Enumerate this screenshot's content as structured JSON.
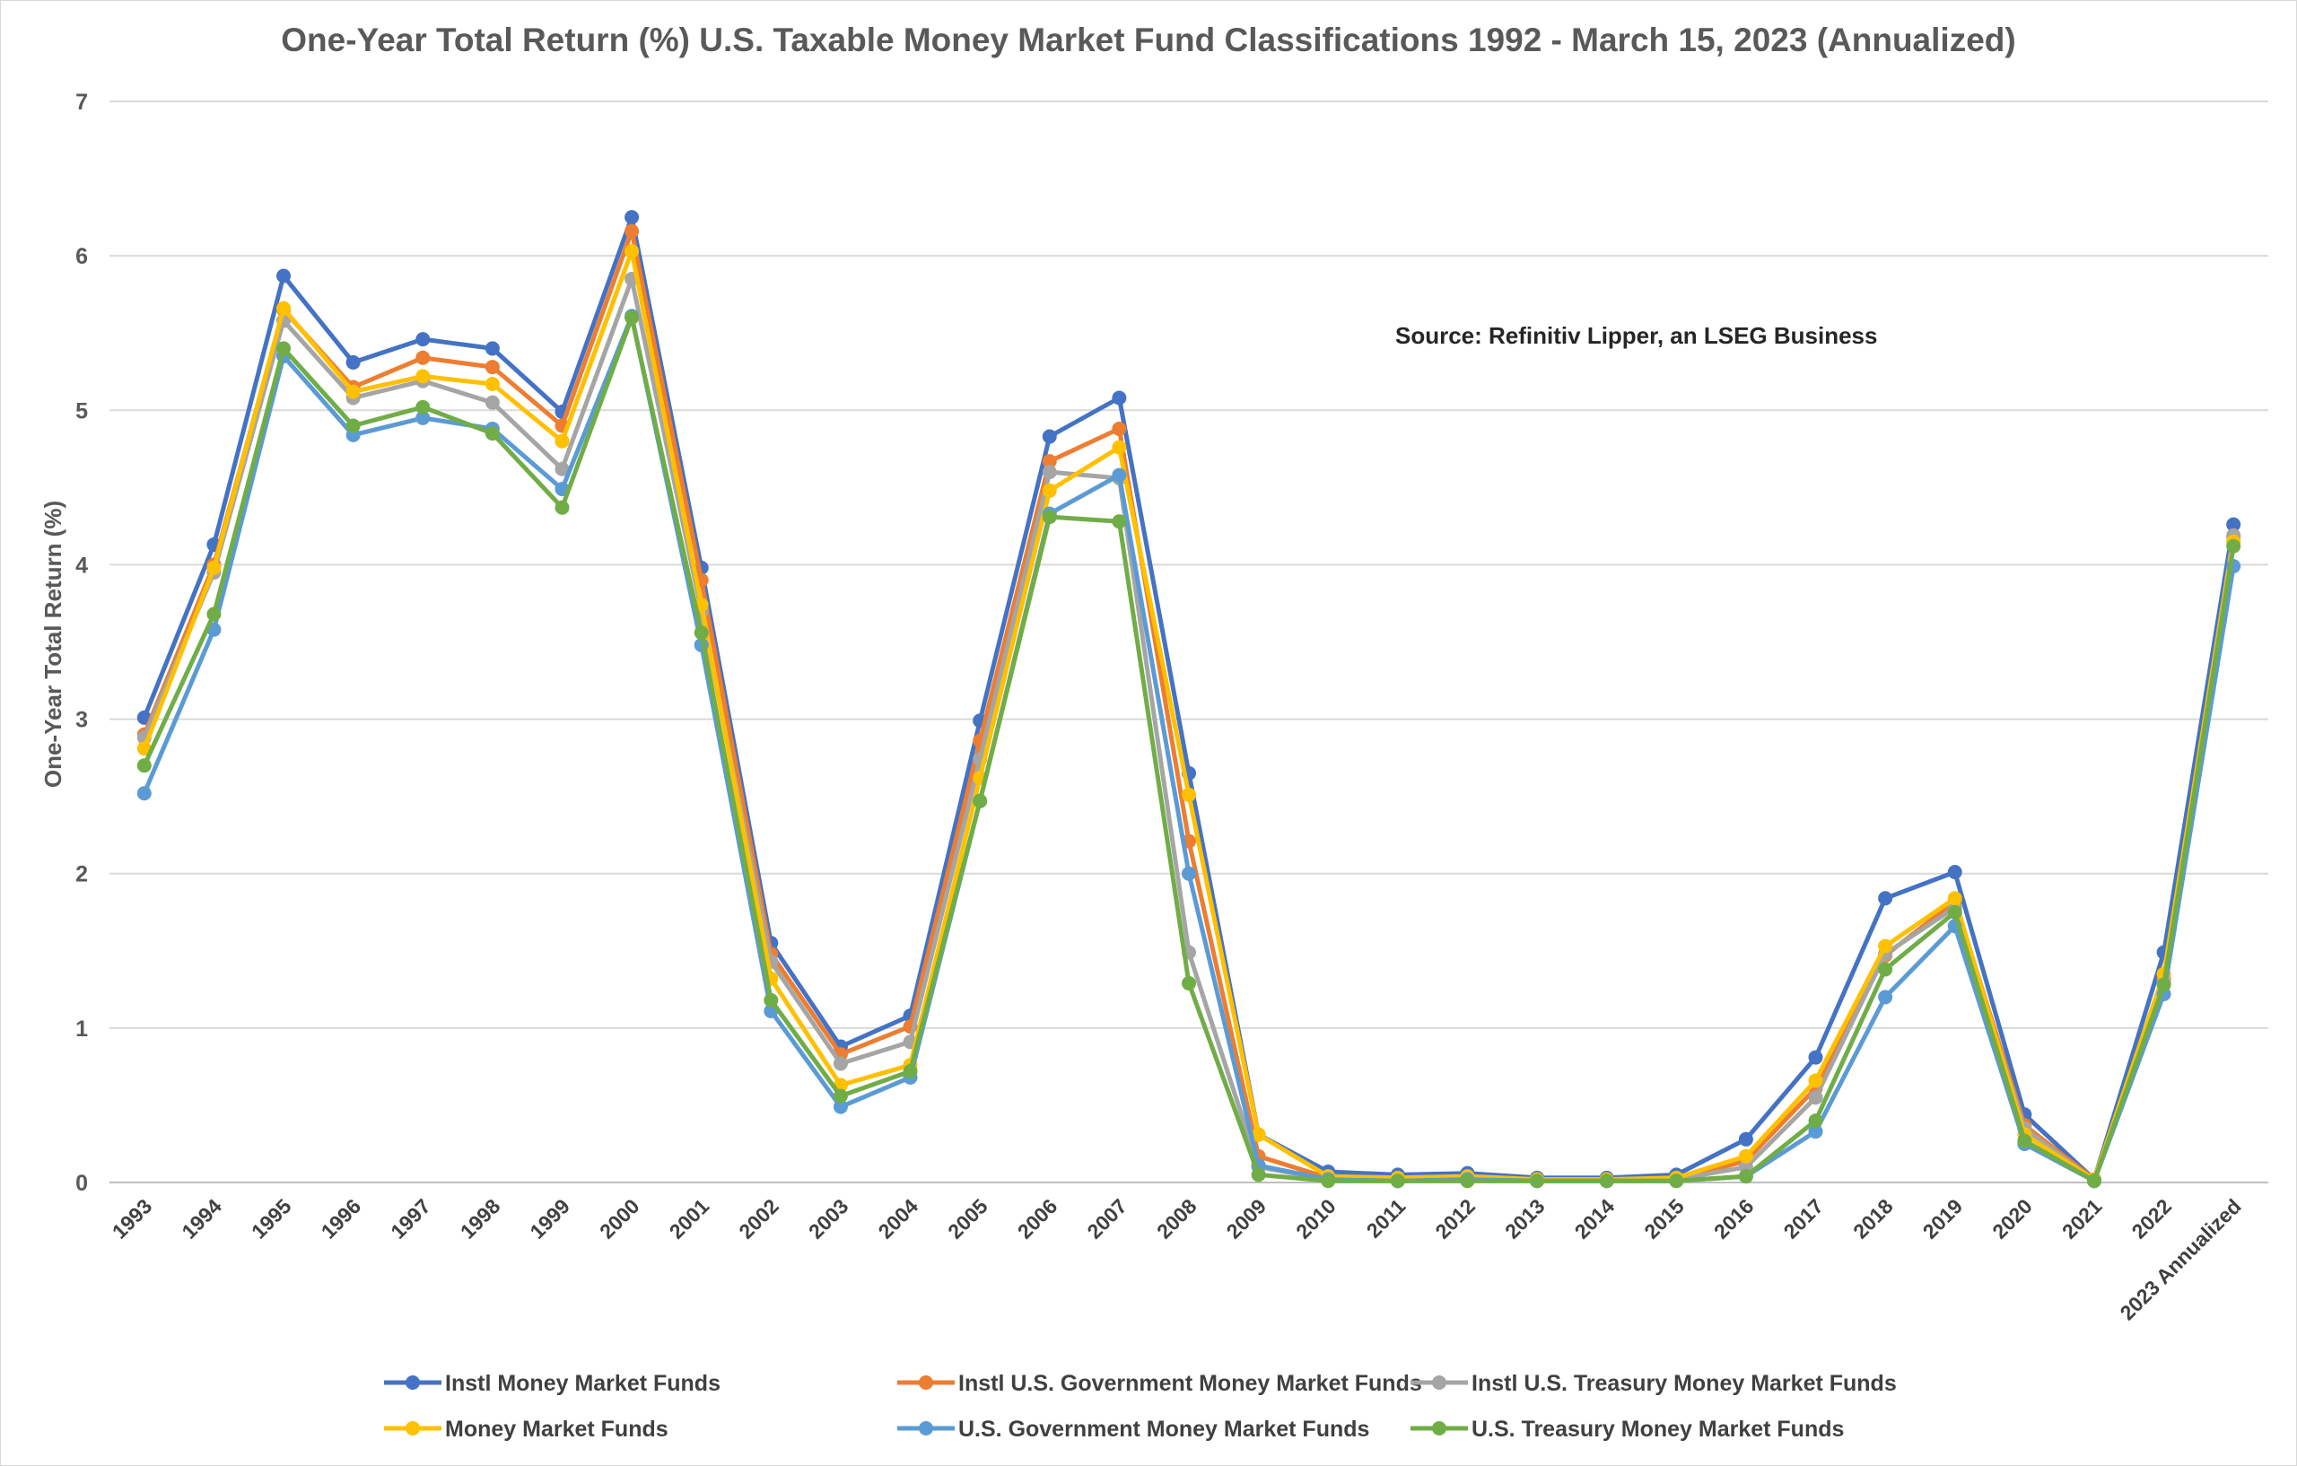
{
  "chart_data": {
    "type": "line",
    "title": "One-Year Total Return (%) U.S. Taxable Money Market Fund Classifications 1992 - March 15, 2023 (Annualized)",
    "ylabel": "One-Year Total Return (%)",
    "xlabel": "",
    "ylim": [
      0,
      7
    ],
    "yticks": [
      0,
      1,
      2,
      3,
      4,
      5,
      6,
      7
    ],
    "grid": true,
    "legend_position": "bottom",
    "annotation": "Source: Refinitiv Lipper, an LSEG Business",
    "categories": [
      "1993",
      "1994",
      "1995",
      "1996",
      "1997",
      "1998",
      "1999",
      "2000",
      "2001",
      "2002",
      "2003",
      "2004",
      "2005",
      "2006",
      "2007",
      "2008",
      "2009",
      "2010",
      "2011",
      "2012",
      "2013",
      "2014",
      "2015",
      "2016",
      "2017",
      "2018",
      "2019",
      "2020",
      "2021",
      "2022",
      "2023 Annualized"
    ],
    "series": [
      {
        "name": "Instl Money Market Funds",
        "color": "#4472C4",
        "values": [
          3.01,
          4.13,
          5.87,
          5.31,
          5.46,
          5.4,
          4.99,
          6.25,
          3.98,
          1.55,
          0.88,
          1.08,
          2.99,
          4.83,
          5.08,
          2.65,
          0.31,
          0.07,
          0.05,
          0.06,
          0.03,
          0.03,
          0.05,
          0.28,
          0.81,
          1.84,
          2.01,
          0.44,
          0.02,
          1.49,
          4.26
        ]
      },
      {
        "name": "Instl U.S. Government Money Market Funds",
        "color": "#ED7D31",
        "values": [
          2.9,
          4.0,
          5.65,
          5.15,
          5.34,
          5.28,
          4.9,
          6.16,
          3.9,
          1.48,
          0.83,
          1.01,
          2.86,
          4.67,
          4.88,
          2.21,
          0.17,
          0.03,
          0.02,
          0.03,
          0.02,
          0.02,
          0.02,
          0.14,
          0.61,
          1.47,
          1.82,
          0.37,
          0.02,
          1.32,
          4.18
        ]
      },
      {
        "name": "Instl U.S. Treasury Money Market Funds",
        "color": "#A5A5A5",
        "values": [
          2.88,
          3.95,
          5.58,
          5.08,
          5.19,
          5.05,
          4.62,
          5.85,
          3.7,
          1.43,
          0.77,
          0.91,
          2.74,
          4.6,
          4.56,
          1.49,
          0.1,
          0.02,
          0.01,
          0.02,
          0.01,
          0.01,
          0.02,
          0.1,
          0.55,
          1.48,
          1.78,
          0.35,
          0.01,
          1.3,
          4.19
        ]
      },
      {
        "name": "Money Market Funds",
        "color": "#FFC000",
        "values": [
          2.81,
          3.98,
          5.66,
          5.12,
          5.22,
          5.17,
          4.8,
          6.03,
          3.74,
          1.32,
          0.63,
          0.76,
          2.62,
          4.48,
          4.76,
          2.51,
          0.31,
          0.04,
          0.03,
          0.04,
          0.02,
          0.02,
          0.03,
          0.17,
          0.66,
          1.53,
          1.84,
          0.31,
          0.02,
          1.35,
          4.15
        ]
      },
      {
        "name": "U.S. Government Money Market Funds",
        "color": "#5B9BD5",
        "values": [
          2.52,
          3.58,
          5.35,
          4.84,
          4.95,
          4.88,
          4.49,
          5.61,
          3.48,
          1.11,
          0.49,
          0.68,
          2.47,
          4.33,
          4.58,
          2.0,
          0.11,
          0.02,
          0.01,
          0.02,
          0.01,
          0.01,
          0.01,
          0.04,
          0.33,
          1.2,
          1.66,
          0.25,
          0.01,
          1.22,
          3.99
        ]
      },
      {
        "name": "U.S. Treasury Money Market Funds",
        "color": "#70AD47",
        "values": [
          2.7,
          3.68,
          5.4,
          4.9,
          5.02,
          4.85,
          4.37,
          5.6,
          3.56,
          1.18,
          0.56,
          0.72,
          2.47,
          4.31,
          4.28,
          1.29,
          0.05,
          0.01,
          0.01,
          0.01,
          0.01,
          0.01,
          0.01,
          0.04,
          0.4,
          1.38,
          1.75,
          0.27,
          0.01,
          1.28,
          4.12
        ]
      }
    ]
  }
}
